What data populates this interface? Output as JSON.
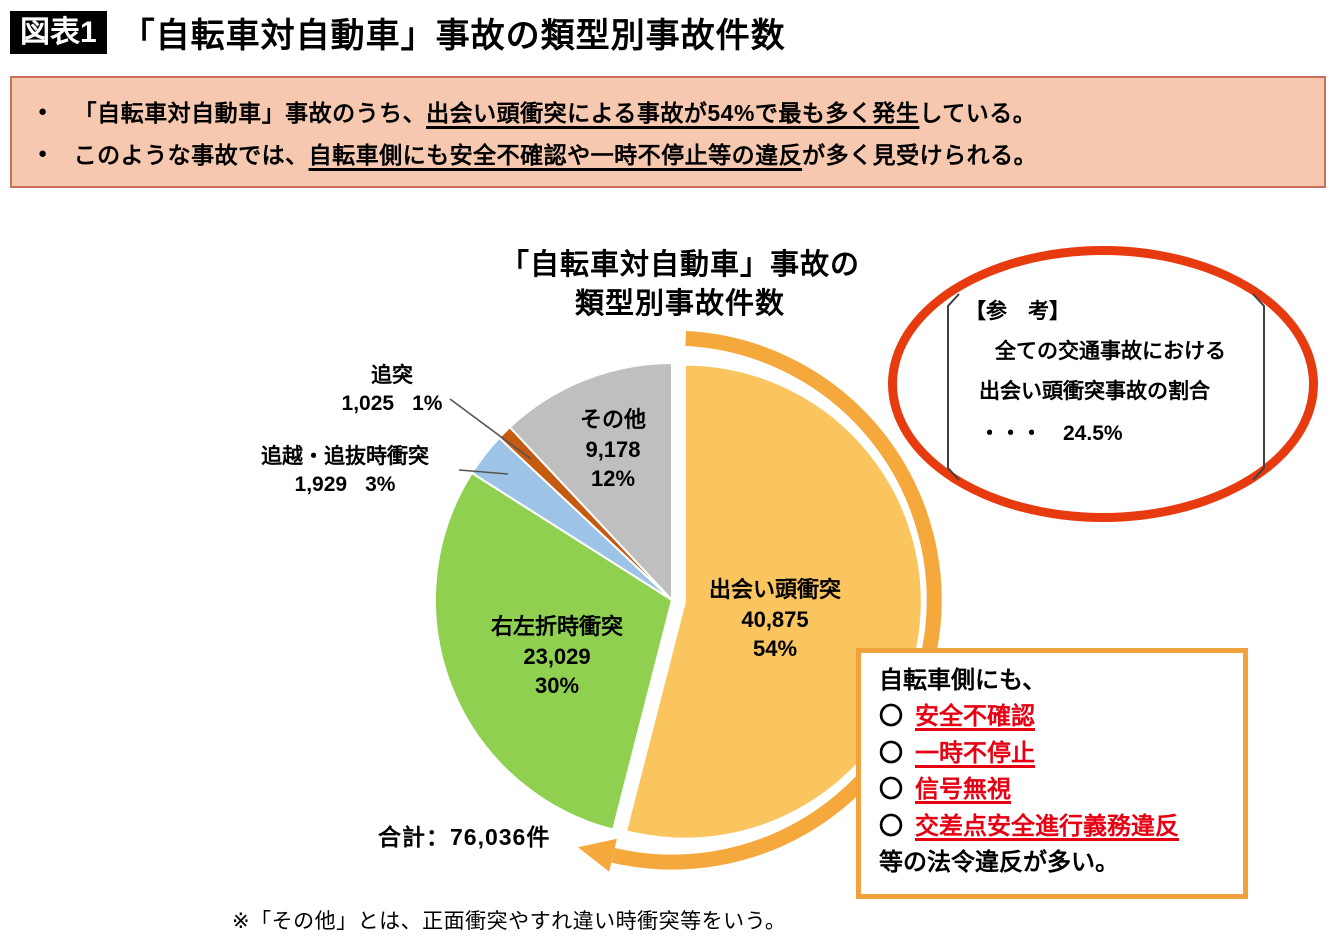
{
  "colors": {
    "badge_bg": "#000000",
    "summary_bg": "#F6C8AF",
    "summary_border": "#C9705A",
    "ellipse_red": "#E83A0F",
    "arrow_orange": "#F5A83B",
    "violation_border": "#F2A23C",
    "violation_red": "#E60012",
    "leader_line": "#555555"
  },
  "header": {
    "badge": "図表1",
    "title": "「自転車対自動車」事故の類型別事故件数"
  },
  "summary_box": {
    "bullet_glyph": "●",
    "bullets": [
      {
        "pre": "「自転車対自動車」事故のうち、",
        "em": "出会い頭衝突による事故が54%で最も多く発生",
        "post": "している。"
      },
      {
        "pre": "このような事故では、",
        "em": "自転車側にも安全不確認や一時不停止等の違反",
        "post": "が多く見受けられる。"
      }
    ]
  },
  "chart_data": {
    "type": "pie",
    "title_lines": [
      "「自転車対自動車」事故の",
      "類型別事故件数"
    ],
    "unit": "件",
    "total": 76036,
    "total_label": "合計：76,036件",
    "slices": [
      {
        "label": "出会い頭衝突",
        "value": 40875,
        "value_label": "40,875",
        "pct": 54,
        "pct_label": "54%",
        "color": "#FAC55E"
      },
      {
        "label": "右左折時衝突",
        "value": 23029,
        "value_label": "23,029",
        "pct": 30,
        "pct_label": "30%",
        "color": "#8FD051"
      },
      {
        "label": "追越・追抜時衝突",
        "value": 1929,
        "value_label": "1,929",
        "pct": 3,
        "pct_label": "3%",
        "color": "#9DC3E6"
      },
      {
        "label": "追突",
        "value": 1025,
        "value_label": "1,025",
        "pct": 1,
        "pct_label": "1%",
        "color": "#C55A11"
      },
      {
        "label": "その他",
        "value": 9178,
        "value_label": "9,178",
        "pct": 12,
        "pct_label": "12%",
        "color": "#BFBFBF"
      }
    ],
    "note": "※「その他」とは、正面衝突やすれ違い時衝突等をいう。"
  },
  "reference_bubble": {
    "heading": "【参　考】",
    "lines": [
      "全ての交通事故における",
      "出会い頭衝突事故の割合",
      "・・・　24.5%"
    ]
  },
  "violation_box": {
    "intro": "自転車側にも、",
    "marker": "〇",
    "items": [
      "安全不確認",
      "一時不停止",
      "信号無視",
      "交差点安全進行義務違反"
    ],
    "outro": "等の法令違反が多い。"
  }
}
